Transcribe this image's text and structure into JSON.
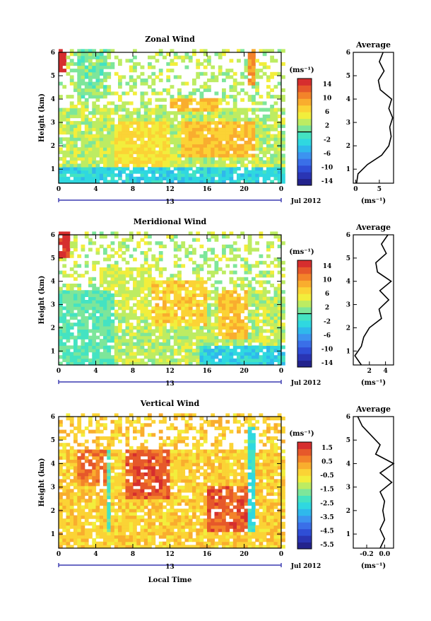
{
  "figure": {
    "date_label": "Jul 2012",
    "day_label": "13",
    "xlabel": "Local Time",
    "x_ticks": [
      "0",
      "4",
      "8",
      "12",
      "16",
      "20",
      "0"
    ],
    "y_ticks": [
      "1",
      "2",
      "3",
      "4",
      "5",
      "6"
    ]
  },
  "chart_data": [
    {
      "id": "zonal",
      "type": "heatmap",
      "title": "Zonal Wind",
      "ylabel": "Height (km)",
      "xlim": [
        0,
        24
      ],
      "ylim": [
        0.4,
        6.0
      ],
      "colorbar": {
        "unit": "(ms⁻¹)",
        "ticks": [
          "14",
          "10",
          "6",
          "2",
          "-2",
          "-6",
          "-10",
          "-14"
        ],
        "range": [
          -16,
          16
        ],
        "zero_line": true
      },
      "regions": [
        {
          "x": [
            0.0,
            0.8
          ],
          "y": [
            5.0,
            6.0
          ],
          "v": 15
        },
        {
          "x": [
            2.0,
            5.0
          ],
          "y": [
            4.0,
            6.0
          ],
          "v": 1
        },
        {
          "x": [
            12.0,
            17.0
          ],
          "y": [
            3.4,
            4.0
          ],
          "v": 8
        },
        {
          "x": [
            0.0,
            24.0
          ],
          "y": [
            0.4,
            1.0
          ],
          "v": -3
        },
        {
          "x": [
            6.0,
            12.0
          ],
          "y": [
            1.0,
            3.0
          ],
          "v": 6
        },
        {
          "x": [
            13.0,
            21.0
          ],
          "y": [
            1.5,
            3.0
          ],
          "v": 8
        },
        {
          "x": [
            20.0,
            21.0
          ],
          "y": [
            4.5,
            6.0
          ],
          "v": 10
        }
      ],
      "average": {
        "title": "Average",
        "xlabel": "(ms⁻¹)",
        "x_ticks": [
          "0",
          "5"
        ],
        "xlim": [
          -0.5,
          8
        ],
        "y": [
          0.4,
          0.8,
          1.2,
          1.6,
          2.0,
          2.4,
          2.8,
          3.2,
          3.6,
          4.0,
          4.4,
          4.8,
          5.2,
          5.6,
          6.0
        ],
        "x": [
          0.2,
          0.5,
          2.5,
          5.5,
          7.0,
          7.5,
          7.2,
          7.8,
          7.0,
          7.6,
          5.2,
          4.8,
          6.0,
          5.0,
          5.8
        ]
      }
    },
    {
      "id": "meridional",
      "type": "heatmap",
      "title": "Meridional Wind",
      "ylabel": "Height (km)",
      "xlim": [
        0,
        24
      ],
      "ylim": [
        0.4,
        6.0
      ],
      "colorbar": {
        "unit": "(ms⁻¹)",
        "ticks": [
          "14",
          "10",
          "6",
          "2",
          "-2",
          "-6",
          "-10",
          "-14"
        ],
        "range": [
          -16,
          16
        ],
        "zero_line": true
      },
      "regions": [
        {
          "x": [
            0.0,
            1.0
          ],
          "y": [
            5.0,
            6.0
          ],
          "v": 15
        },
        {
          "x": [
            4.0,
            10.0
          ],
          "y": [
            2.5,
            4.5
          ],
          "v": 4
        },
        {
          "x": [
            10.0,
            16.0
          ],
          "y": [
            2.0,
            4.0
          ],
          "v": 7
        },
        {
          "x": [
            17.0,
            20.0
          ],
          "y": [
            1.5,
            3.5
          ],
          "v": 8
        },
        {
          "x": [
            15.0,
            24.0
          ],
          "y": [
            0.4,
            1.2
          ],
          "v": -3
        },
        {
          "x": [
            0.0,
            6.0
          ],
          "y": [
            0.4,
            3.5
          ],
          "v": 0
        }
      ],
      "average": {
        "title": "Average",
        "xlabel": "(ms⁻¹)",
        "x_ticks": [
          "2",
          "4"
        ],
        "xlim": [
          0,
          5
        ],
        "y": [
          0.4,
          0.8,
          1.2,
          1.6,
          2.0,
          2.4,
          2.8,
          3.2,
          3.6,
          4.0,
          4.4,
          4.8,
          5.2,
          5.6,
          6.0
        ],
        "x": [
          1.0,
          0.2,
          1.0,
          1.3,
          2.0,
          3.5,
          3.2,
          4.4,
          3.3,
          4.7,
          3.0,
          2.8,
          4.1,
          3.5,
          4.3
        ]
      }
    },
    {
      "id": "vertical",
      "type": "heatmap",
      "title": "Vertical Wind",
      "ylabel": "Height (km)",
      "xlim": [
        0,
        24
      ],
      "ylim": [
        0.4,
        6.0
      ],
      "colorbar": {
        "unit": "(ms⁻¹)",
        "ticks": [
          "1.5",
          "0.5",
          "-0.5",
          "-1.5",
          "-2.5",
          "-3.5",
          "-4.5",
          "-5.5"
        ],
        "range": [
          -6,
          2
        ],
        "zero_line": false
      },
      "regions": [
        {
          "x": [
            5.0,
            5.6
          ],
          "y": [
            1.0,
            4.5
          ],
          "v": -2.0
        },
        {
          "x": [
            7.0,
            12.0
          ],
          "y": [
            2.5,
            4.5
          ],
          "v": 1.2
        },
        {
          "x": [
            16.0,
            20.0
          ],
          "y": [
            1.0,
            3.0
          ],
          "v": 1.2
        },
        {
          "x": [
            20.0,
            21.0
          ],
          "y": [
            1.0,
            5.5
          ],
          "v": -2.5
        },
        {
          "x": [
            2.0,
            5.0
          ],
          "y": [
            3.0,
            4.5
          ],
          "v": 0.8
        }
      ],
      "average": {
        "title": "Average",
        "xlabel": "(ms⁻¹)",
        "x_ticks": [
          "-0.2",
          "0.0"
        ],
        "xlim": [
          -0.35,
          0.1
        ],
        "y": [
          0.4,
          0.8,
          1.2,
          1.6,
          2.0,
          2.4,
          2.8,
          3.2,
          3.6,
          4.0,
          4.4,
          4.8,
          5.2,
          5.6,
          6.0
        ],
        "x": [
          -0.05,
          0.0,
          -0.05,
          0.0,
          -0.02,
          0.0,
          -0.05,
          0.08,
          -0.05,
          0.1,
          -0.1,
          -0.05,
          -0.15,
          -0.25,
          -0.3
        ]
      }
    }
  ]
}
